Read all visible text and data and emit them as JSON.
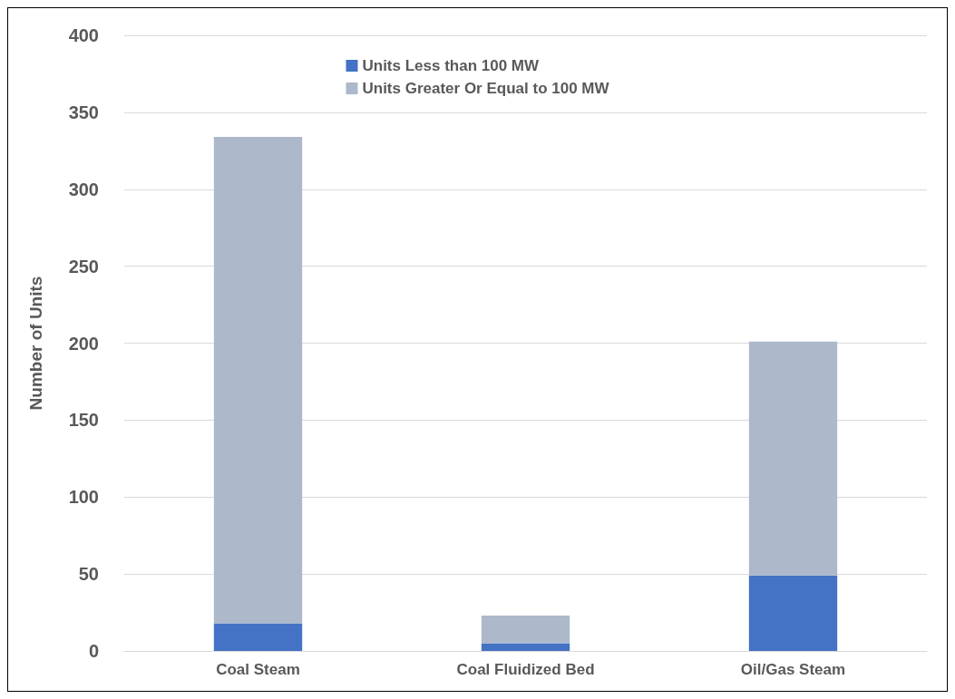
{
  "chart_data": {
    "type": "bar",
    "stacked": true,
    "ylabel": "Number of Units",
    "categories": [
      "Coal Steam",
      "Coal Fluidized Bed",
      "Oil/Gas Steam"
    ],
    "series": [
      {
        "name": "Units Less than 100 MW",
        "color": "#4472c4",
        "values": [
          18,
          5,
          49
        ]
      },
      {
        "name": "Units Greater Or Equal to 100 MW",
        "color": "#adb9ca",
        "values": [
          316,
          18,
          152
        ]
      }
    ],
    "ylim": [
      0,
      400
    ],
    "yticks": [
      0,
      50,
      100,
      150,
      200,
      250,
      300,
      350,
      400
    ],
    "grid": "y",
    "legend": "top"
  }
}
